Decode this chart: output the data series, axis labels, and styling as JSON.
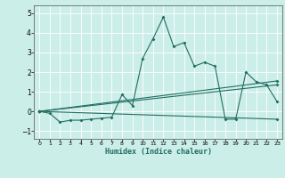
{
  "xlabel": "Humidex (Indice chaleur)",
  "background_color": "#cceee8",
  "grid_color": "#ffffff",
  "line_color": "#216e62",
  "xlim": [
    -0.5,
    23.5
  ],
  "ylim": [
    -1.4,
    5.4
  ],
  "yticks": [
    -1,
    0,
    1,
    2,
    3,
    4,
    5
  ],
  "xticks": [
    0,
    1,
    2,
    3,
    4,
    5,
    6,
    7,
    8,
    9,
    10,
    11,
    12,
    13,
    14,
    15,
    16,
    17,
    18,
    19,
    20,
    21,
    22,
    23
  ],
  "series0_x": [
    0,
    1,
    2,
    3,
    4,
    5,
    6,
    7,
    8,
    9,
    10,
    11,
    12,
    13,
    14,
    15,
    16,
    17,
    18,
    19,
    20,
    21,
    22,
    23
  ],
  "series0_y": [
    0.0,
    -0.1,
    -0.55,
    -0.45,
    -0.45,
    -0.4,
    -0.35,
    -0.3,
    0.85,
    0.3,
    2.7,
    3.7,
    4.8,
    3.3,
    3.5,
    2.3,
    2.5,
    2.3,
    -0.4,
    -0.4,
    2.0,
    1.5,
    1.35,
    0.5
  ],
  "trend1_x": [
    0,
    23
  ],
  "trend1_y": [
    0.0,
    1.55
  ],
  "trend2_x": [
    0,
    23
  ],
  "trend2_y": [
    0.0,
    1.35
  ],
  "trend3_x": [
    0,
    23
  ],
  "trend3_y": [
    0.0,
    -0.4
  ]
}
